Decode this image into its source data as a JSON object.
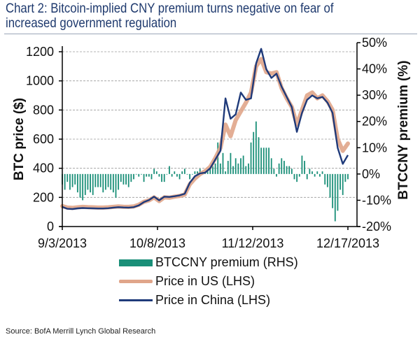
{
  "title": "Chart 2: Bitcoin-implied CNY premium turns negative on fear of increased government regulation",
  "title_lines": [
    "Chart 2: Bitcoin-implied CNY premium turns negative on fear of",
    "increased government regulation"
  ],
  "source": "Source: BofA Merrill Lynch Global Research",
  "colors": {
    "premium": "#1a8f78",
    "price_us": "#e0a58a",
    "price_china": "#1f3a7a",
    "title": "#1f3a6e"
  },
  "chart_data": {
    "type": "line",
    "title": "Chart 2: Bitcoin-implied CNY premium turns negative on fear of increased government regulation",
    "xlabel": "",
    "ylabel": "BTC price ($)",
    "y2label": "BTCCNY premium (%)",
    "ylim": [
      0,
      1200
    ],
    "y2lim": [
      -20,
      50
    ],
    "yticks": [
      "0",
      "200",
      "400",
      "600",
      "800",
      "1000",
      "1200"
    ],
    "y2ticks": [
      "-20%",
      "-10%",
      "0%",
      "10%",
      "20%",
      "30%",
      "40%",
      "50%"
    ],
    "xticks": [
      "9/3/2013",
      "10/8/2013",
      "11/12/2013",
      "12/17/2013"
    ],
    "xrange_days": [
      0,
      37.5
    ],
    "x_unit": "days since 9/3/2013 divided by 3 (index)",
    "grid": true,
    "legend_position": "bottom",
    "legend": [
      "BTCCNY premium (RHS)",
      "Price in US (LHS)",
      "Price in China (LHS)"
    ],
    "series": [
      {
        "name": "Price in US (LHS)",
        "axis": "left",
        "type": "line",
        "x": [
          0,
          2,
          4,
          6,
          8,
          10,
          12,
          14,
          16,
          18,
          20,
          22,
          24,
          26,
          28,
          30,
          32,
          34,
          36,
          38,
          40,
          42,
          44,
          46,
          48,
          50,
          52,
          54,
          56,
          58,
          60,
          62,
          64,
          66,
          68,
          70,
          72,
          74,
          76,
          78,
          80,
          82,
          84,
          86,
          88,
          90,
          92,
          94,
          96,
          98,
          100,
          102,
          104,
          106,
          108,
          110,
          112
        ],
        "values": [
          140,
          130,
          128,
          132,
          135,
          133,
          132,
          130,
          130,
          132,
          135,
          138,
          136,
          135,
          138,
          150,
          170,
          180,
          200,
          175,
          200,
          198,
          205,
          210,
          220,
          290,
          330,
          360,
          380,
          410,
          470,
          540,
          700,
          620,
          730,
          790,
          850,
          920,
          1100,
          1150,
          1060,
          1050,
          1060,
          950,
          880,
          820,
          700,
          800,
          900,
          920,
          880,
          900,
          860,
          800,
          600,
          520,
          570
        ],
        "note": "approximate values read from chart"
      },
      {
        "name": "Price in China (LHS)",
        "axis": "left",
        "type": "line",
        "x": [
          0,
          2,
          4,
          6,
          8,
          10,
          12,
          14,
          16,
          18,
          20,
          22,
          24,
          26,
          28,
          30,
          32,
          34,
          36,
          38,
          40,
          42,
          44,
          46,
          48,
          50,
          52,
          54,
          56,
          58,
          60,
          62,
          64,
          66,
          68,
          70,
          72,
          74,
          76,
          78,
          80,
          82,
          84,
          86,
          88,
          90,
          92,
          94,
          96,
          98,
          100,
          102,
          104,
          106,
          108,
          110,
          112
        ],
        "values": [
          135,
          122,
          120,
          125,
          127,
          126,
          125,
          124,
          124,
          126,
          130,
          133,
          131,
          130,
          133,
          145,
          168,
          182,
          205,
          180,
          205,
          203,
          208,
          214,
          225,
          300,
          345,
          365,
          370,
          400,
          460,
          520,
          880,
          740,
          770,
          920,
          870,
          880,
          1120,
          1220,
          1080,
          1020,
          1050,
          960,
          890,
          820,
          650,
          780,
          870,
          900,
          880,
          890,
          850,
          780,
          540,
          430,
          490
        ],
        "note": "approximate values read from chart"
      },
      {
        "name": "BTCCNY premium (RHS)",
        "axis": "right",
        "type": "bar",
        "x": [
          0,
          1,
          2,
          3,
          4,
          5,
          6,
          7,
          8,
          9,
          10,
          11,
          12,
          13,
          14,
          15,
          16,
          17,
          18,
          19,
          20,
          21,
          22,
          23,
          24,
          25,
          26,
          27,
          28,
          29,
          30,
          31,
          32,
          33,
          34,
          35,
          36,
          37,
          38,
          39,
          40,
          41,
          42,
          43,
          44,
          45,
          46,
          47,
          48,
          49,
          50,
          51,
          52,
          53,
          54,
          55,
          56,
          57,
          58,
          59,
          60,
          61,
          62,
          63,
          64,
          65,
          66,
          67,
          68,
          69,
          70,
          71,
          72,
          73,
          74,
          75,
          76,
          77,
          78,
          79,
          80,
          81,
          82,
          83,
          84,
          85,
          86,
          87,
          88,
          89,
          90,
          91,
          92,
          93,
          94,
          95,
          96,
          97,
          98,
          99,
          100,
          101,
          102,
          103,
          104,
          105,
          106,
          107,
          108,
          109,
          110,
          111,
          112
        ],
        "values": [
          -4,
          -6,
          -3,
          -6,
          -5,
          -4,
          -7,
          -9,
          -10,
          -8,
          -6,
          -7,
          -8,
          -5,
          -5,
          -5,
          -7,
          -6,
          -5,
          -6,
          -7,
          -9,
          -6,
          -3,
          -4,
          -4,
          -5,
          -3,
          -2,
          0,
          -1,
          0,
          -3,
          -1,
          -1,
          -2,
          2,
          1,
          -1,
          -3,
          -3,
          0,
          3,
          -1,
          1,
          -1,
          -2,
          1,
          2,
          0,
          -2,
          0,
          1,
          1,
          2,
          1,
          1,
          1,
          2,
          3,
          4,
          12,
          4,
          8,
          1,
          5,
          8,
          3,
          6,
          4,
          6,
          7,
          3,
          4,
          12,
          16,
          20,
          14,
          10,
          10,
          10,
          10,
          6,
          2,
          -1,
          4,
          6,
          5,
          3,
          3,
          2,
          -2,
          -3,
          -1,
          7,
          5,
          -2,
          2,
          1,
          -1,
          1,
          -1,
          1,
          -4,
          -5,
          -9,
          -13,
          -18,
          -14,
          -6,
          -8,
          -3,
          -2
        ]
      }
    ]
  },
  "legend": {
    "premium": "BTCCNY premium (RHS)",
    "us": "Price in US (LHS)",
    "china": "Price in China (LHS)"
  }
}
